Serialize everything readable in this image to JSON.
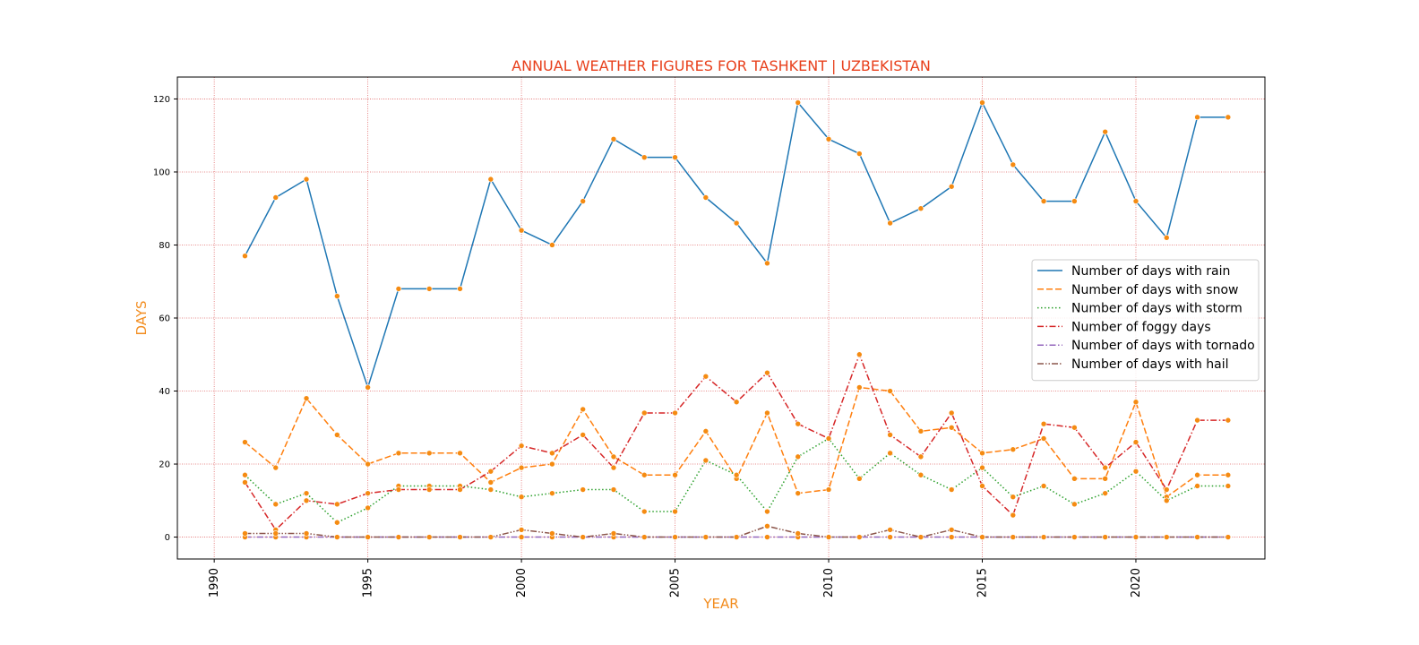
{
  "chart_data": {
    "type": "line",
    "title": "ANNUAL WEATHER FIGURES FOR TASHKENT | UZBEKISTAN",
    "xlabel": "YEAR",
    "ylabel": "DAYS",
    "xlim": [
      1988.8,
      2024.2
    ],
    "ylim": [
      -6,
      126
    ],
    "xticks": [
      1990,
      1995,
      2000,
      2005,
      2010,
      2015,
      2020
    ],
    "yticks": [
      0,
      20,
      40,
      60,
      80,
      100,
      120
    ],
    "grid": true,
    "legend_position": "right",
    "colors": {
      "title": "#e8401c",
      "axis_label": "#f28c1e",
      "grid": "#e06666",
      "marker": "#f58b12"
    },
    "x": [
      1991,
      1992,
      1993,
      1994,
      1995,
      1996,
      1997,
      1998,
      1999,
      2000,
      2001,
      2002,
      2003,
      2004,
      2005,
      2006,
      2007,
      2008,
      2009,
      2010,
      2011,
      2012,
      2013,
      2014,
      2015,
      2016,
      2017,
      2018,
      2019,
      2020,
      2021,
      2022,
      2023
    ],
    "series": [
      {
        "name": "Number of days with rain",
        "color": "#1f77b4",
        "dash": "solid",
        "values": [
          77,
          93,
          98,
          66,
          41,
          68,
          68,
          68,
          98,
          84,
          80,
          92,
          109,
          104,
          104,
          93,
          86,
          75,
          119,
          109,
          105,
          86,
          90,
          96,
          119,
          102,
          92,
          92,
          111,
          92,
          82,
          115,
          115
        ]
      },
      {
        "name": "Number of days with snow",
        "color": "#ff7f0e",
        "dash": "dashed",
        "values": [
          26,
          19,
          38,
          28,
          20,
          23,
          23,
          23,
          15,
          19,
          20,
          35,
          22,
          17,
          17,
          29,
          16,
          34,
          12,
          13,
          41,
          40,
          29,
          30,
          23,
          24,
          27,
          16,
          16,
          37,
          11,
          17,
          17
        ]
      },
      {
        "name": "Number of days with storm",
        "color": "#2ca02c",
        "dash": "dotted",
        "values": [
          17,
          9,
          12,
          4,
          8,
          14,
          14,
          14,
          13,
          11,
          12,
          13,
          13,
          7,
          7,
          21,
          17,
          7,
          22,
          27,
          16,
          23,
          17,
          13,
          19,
          11,
          14,
          9,
          12,
          18,
          10,
          14,
          14
        ]
      },
      {
        "name": "Number of foggy days",
        "color": "#d62728",
        "dash": "dashdot",
        "values": [
          15,
          2,
          10,
          9,
          12,
          13,
          13,
          13,
          18,
          25,
          23,
          28,
          19,
          34,
          34,
          44,
          37,
          45,
          31,
          27,
          50,
          28,
          22,
          34,
          14,
          6,
          31,
          30,
          19,
          26,
          13,
          32,
          32
        ]
      },
      {
        "name": "Number of days with tornado",
        "color": "#9467bd",
        "dash": "dashdot",
        "values": [
          0,
          0,
          0,
          0,
          0,
          0,
          0,
          0,
          0,
          0,
          0,
          0,
          0,
          0,
          0,
          0,
          0,
          0,
          0,
          0,
          0,
          0,
          0,
          0,
          0,
          0,
          0,
          0,
          0,
          0,
          0,
          0,
          0
        ]
      },
      {
        "name": "Number of days with hail",
        "color": "#8c564b",
        "dash": "dashdotdot",
        "values": [
          1,
          1,
          1,
          0,
          0,
          0,
          0,
          0,
          0,
          2,
          1,
          0,
          1,
          0,
          0,
          0,
          0,
          3,
          1,
          0,
          0,
          2,
          0,
          2,
          0,
          0,
          0,
          0,
          0,
          0,
          0,
          0,
          0
        ]
      }
    ]
  }
}
